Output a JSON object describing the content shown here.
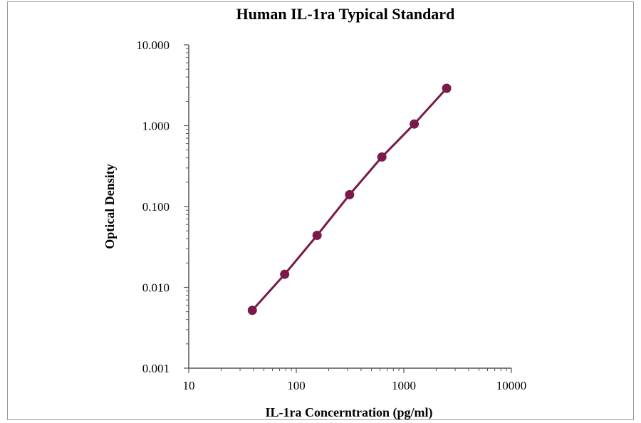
{
  "chart_data": {
    "type": "line",
    "title": "Human IL-1ra Typical Standard",
    "xlabel": "IL-1ra Concerntration (pg/ml)",
    "ylabel": "Optical Density",
    "x_scale": "log",
    "y_scale": "log",
    "xlim": [
      10,
      10000
    ],
    "ylim": [
      0.001,
      10
    ],
    "x_ticks": [
      "10",
      "100",
      "1000",
      "10000"
    ],
    "y_ticks": [
      "10.000",
      "1.000",
      "0.100",
      "0.010",
      "0.001"
    ],
    "grid": false,
    "legend": "none",
    "series": [
      {
        "x": [
          39,
          78,
          156,
          313,
          625,
          1250,
          2500
        ],
        "y": [
          0.0052,
          0.0145,
          0.044,
          0.14,
          0.41,
          1.05,
          2.9
        ]
      }
    ],
    "colors": {
      "series": "#7a1a4a",
      "axis": "#555555"
    }
  }
}
